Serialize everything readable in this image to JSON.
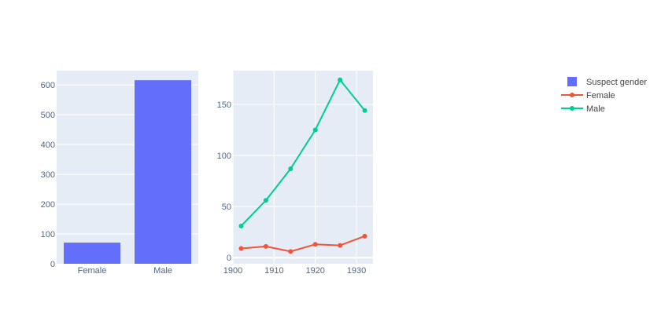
{
  "chart_data": [
    {
      "type": "bar",
      "title": "",
      "xlabel": "",
      "ylabel": "",
      "categories": [
        "Female",
        "Male"
      ],
      "series": [
        {
          "name": "Suspect gender",
          "values": [
            71,
            616
          ],
          "color": "#636efa"
        }
      ],
      "ylim": [
        0,
        648
      ],
      "yticks": [
        0,
        100,
        200,
        300,
        400,
        500,
        600
      ],
      "grid": true
    },
    {
      "type": "line",
      "title": "",
      "xlabel": "",
      "ylabel": "",
      "x": [
        1902,
        1908,
        1914,
        1920,
        1926,
        1932
      ],
      "series": [
        {
          "name": "Female",
          "values": [
            9,
            11,
            6,
            13,
            12,
            21
          ],
          "color": "#ef553b"
        },
        {
          "name": "Male",
          "values": [
            31,
            56,
            87,
            125,
            174,
            144
          ],
          "color": "#00cc96"
        }
      ],
      "xlim": [
        1900,
        1934
      ],
      "ylim": [
        -6,
        183
      ],
      "xticks": [
        1900,
        1910,
        1920,
        1930
      ],
      "yticks": [
        0,
        50,
        100,
        150
      ],
      "grid": true
    }
  ],
  "legend": {
    "placement": "top-right",
    "items": [
      {
        "label": "Suspect gender",
        "kind": "bar",
        "color": "#636efa"
      },
      {
        "label": "Female",
        "kind": "line",
        "color": "#ef553b"
      },
      {
        "label": "Male",
        "kind": "line",
        "color": "#00cc96"
      }
    ]
  },
  "colors": {
    "plot_bg": "#e5ecf6",
    "grid": "#ffffff",
    "tick_text": "#506784"
  }
}
